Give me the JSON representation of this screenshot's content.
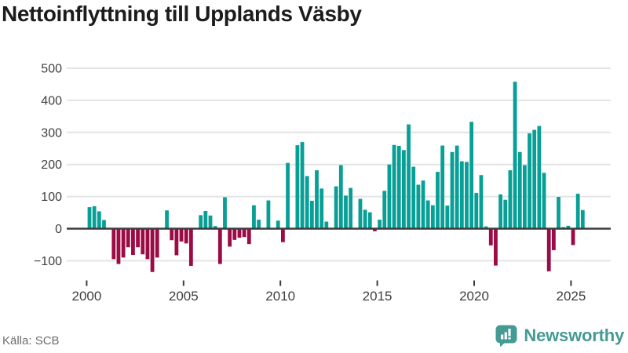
{
  "header": {
    "title": "Nettoinflyttning till Upplands Väsby"
  },
  "footer": {
    "source": "Källa: SCB",
    "brand": "Newsworthy"
  },
  "colors": {
    "positive": "#089f96",
    "negative": "#9b0b46",
    "grid": "#e4e4e4",
    "zero_line": "#3c3c3c",
    "axis_text": "#404040",
    "title_text": "#1c1c1c",
    "source_text": "#6e6e6e",
    "brand": "#459b94"
  },
  "chart_data": {
    "type": "bar",
    "title": "Nettoinflyttning till Upplands Väsby",
    "source": "Källa: SCB",
    "xlabel": "",
    "ylabel": "",
    "grid": true,
    "legend": false,
    "ylim": [
      -160,
      520
    ],
    "y_ticks": [
      500,
      400,
      300,
      200,
      100,
      0,
      -100
    ],
    "y_tick_labels": [
      "500",
      "400",
      "300",
      "200",
      "100",
      "0",
      "−100"
    ],
    "x_tick_years": [
      2000,
      2005,
      2010,
      2015,
      2020,
      2025
    ],
    "x_tick_labels": [
      "2000",
      "2005",
      "2010",
      "2015",
      "2020",
      "2025"
    ],
    "categories": [
      "2000 Q1",
      "2000 Q2",
      "2000 Q3",
      "2000 Q4",
      "2001 Q1",
      "2001 Q2",
      "2001 Q3",
      "2001 Q4",
      "2002 Q1",
      "2002 Q2",
      "2002 Q3",
      "2002 Q4",
      "2003 Q1",
      "2003 Q2",
      "2003 Q3",
      "2003 Q4",
      "2004 Q1",
      "2004 Q2",
      "2004 Q3",
      "2004 Q4",
      "2005 Q1",
      "2005 Q2",
      "2005 Q3",
      "2005 Q4",
      "2006 Q1",
      "2006 Q2",
      "2006 Q3",
      "2006 Q4",
      "2007 Q1",
      "2007 Q2",
      "2007 Q3",
      "2007 Q4",
      "2008 Q1",
      "2008 Q2",
      "2008 Q3",
      "2008 Q4",
      "2009 Q1",
      "2009 Q2",
      "2009 Q3",
      "2009 Q4",
      "2010 Q1",
      "2010 Q2",
      "2010 Q3",
      "2010 Q4",
      "2011 Q1",
      "2011 Q2",
      "2011 Q3",
      "2011 Q4",
      "2012 Q1",
      "2012 Q2",
      "2012 Q3",
      "2012 Q4",
      "2013 Q1",
      "2013 Q2",
      "2013 Q3",
      "2013 Q4",
      "2014 Q1",
      "2014 Q2",
      "2014 Q3",
      "2014 Q4",
      "2015 Q1",
      "2015 Q2",
      "2015 Q3",
      "2015 Q4",
      "2016 Q1",
      "2016 Q2",
      "2016 Q3",
      "2016 Q4",
      "2017 Q1",
      "2017 Q2",
      "2017 Q3",
      "2017 Q4",
      "2018 Q1",
      "2018 Q2",
      "2018 Q3",
      "2018 Q4",
      "2019 Q1",
      "2019 Q2",
      "2019 Q3",
      "2019 Q4",
      "2020 Q1",
      "2020 Q2",
      "2020 Q3",
      "2020 Q4",
      "2021 Q1",
      "2021 Q2",
      "2021 Q3",
      "2021 Q4",
      "2022 Q1",
      "2022 Q2",
      "2022 Q3",
      "2022 Q4",
      "2023 Q1",
      "2023 Q2",
      "2023 Q3",
      "2023 Q4",
      "2024 Q1",
      "2024 Q2",
      "2024 Q3",
      "2024 Q4",
      "2025 Q1",
      "2025 Q2",
      "2025 Q3"
    ],
    "values": [
      67,
      70,
      54,
      27,
      0,
      -95,
      -110,
      -90,
      -58,
      -82,
      -58,
      -80,
      -95,
      -135,
      -90,
      0,
      57,
      -36,
      -83,
      -40,
      -46,
      -116,
      0,
      42,
      55,
      41,
      8,
      -110,
      98,
      -56,
      -35,
      -28,
      -26,
      -48,
      73,
      28,
      0,
      88,
      0,
      25,
      -42,
      205,
      0,
      260,
      270,
      164,
      87,
      182,
      125,
      22,
      0,
      132,
      198,
      103,
      127,
      0,
      93,
      59,
      51,
      -8,
      28,
      118,
      200,
      261,
      258,
      245,
      325,
      193,
      137,
      150,
      88,
      73,
      177,
      259,
      72,
      239,
      259,
      210,
      208,
      333,
      111,
      167,
      7,
      -52,
      -115,
      107,
      90,
      182,
      458,
      239,
      198,
      297,
      308,
      320,
      174,
      -133,
      -67,
      99,
      5,
      9,
      -51,
      109,
      58
    ]
  }
}
